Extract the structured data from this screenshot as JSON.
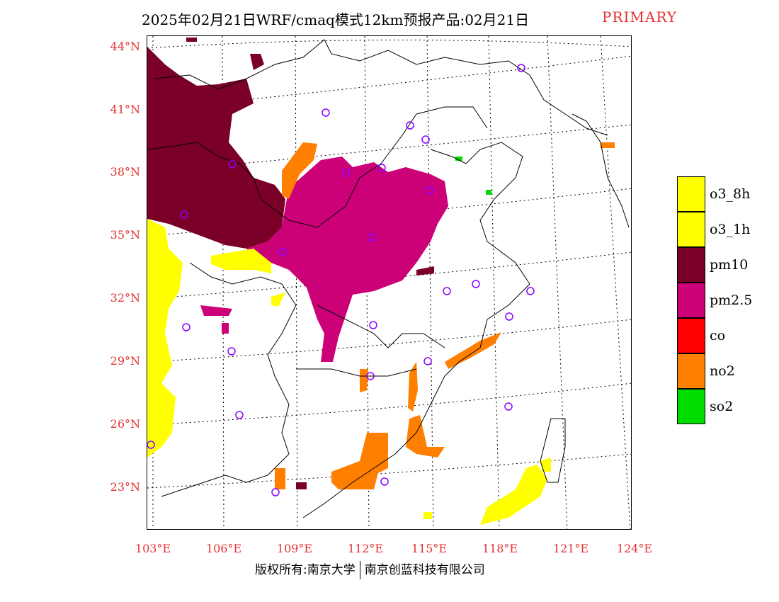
{
  "title": "2025年02月21日WRF/cmaq模式12km预报产品:02月21日",
  "status_label": "PRIMARY",
  "lat_labels": [
    "44°N",
    "41°N",
    "38°N",
    "35°N",
    "32°N",
    "29°N",
    "26°N",
    "23°N"
  ],
  "lon_labels": [
    "103°E",
    "106°E",
    "109°E",
    "112°E",
    "115°E",
    "118°E",
    "121°E",
    "124°E"
  ],
  "legend": [
    {
      "label": "o3_8h",
      "color": "#ffff00"
    },
    {
      "label": "o3_1h",
      "color": "#ffff00"
    },
    {
      "label": "pm10",
      "color": "#7a0028"
    },
    {
      "label": "pm2.5",
      "color": "#cc0077"
    },
    {
      "label": "co",
      "color": "#ff0000"
    },
    {
      "label": "no2",
      "color": "#ff7f00"
    },
    {
      "label": "so2",
      "color": "#00dd00"
    }
  ],
  "footer": {
    "left": "版权所有:南京大学",
    "right": "南京创蓝科技有限公司"
  }
}
